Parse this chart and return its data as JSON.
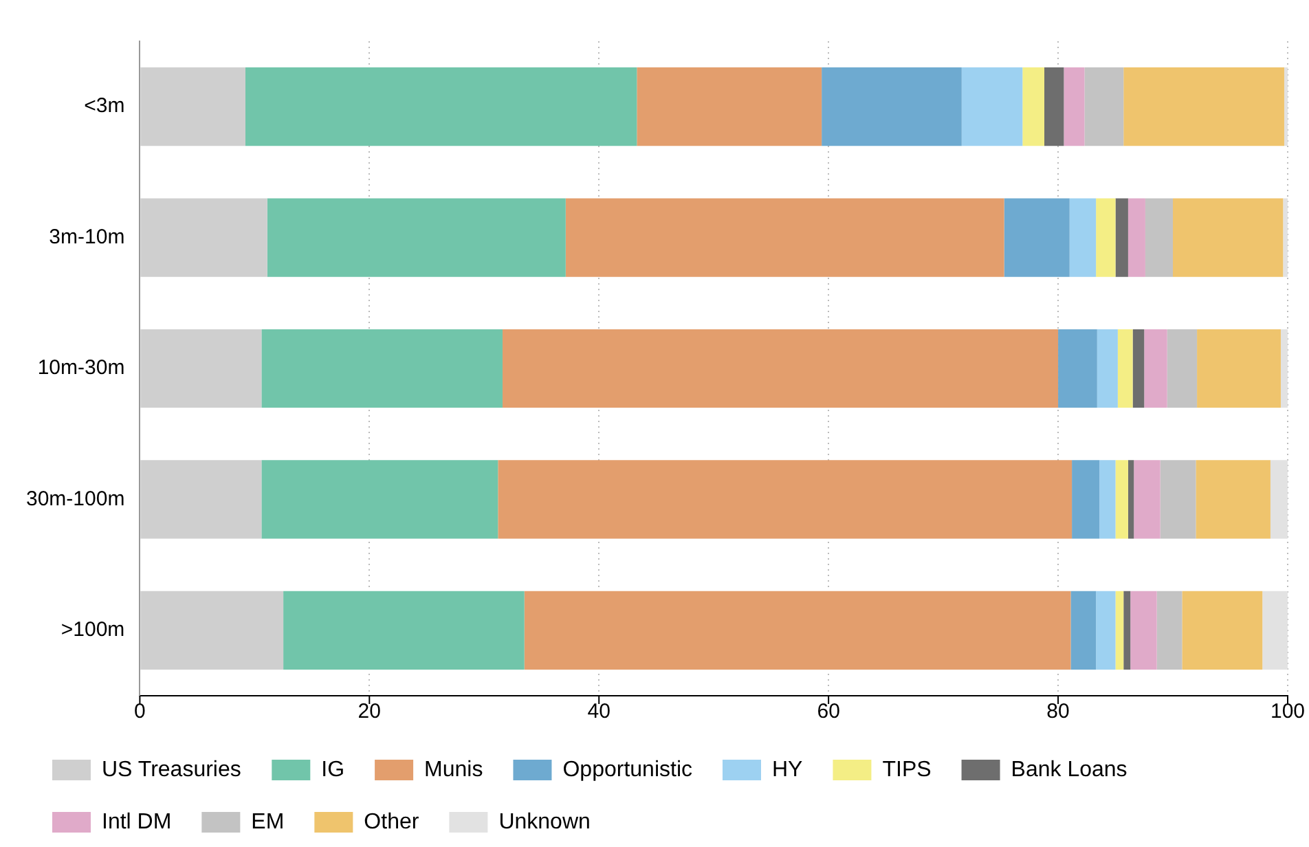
{
  "chart_data": {
    "type": "bar",
    "orientation": "horizontal",
    "stacked": true,
    "categories": [
      "<3m",
      "3m-10m",
      "10m-30m",
      "30m-100m",
      ">100m"
    ],
    "series": [
      {
        "name": "US Treasuries",
        "color": "#cfcfcf",
        "values": [
          9.2,
          11.1,
          10.6,
          10.6,
          12.5
        ]
      },
      {
        "name": "IG",
        "color": "#71c5aa",
        "values": [
          34.1,
          26.0,
          21.0,
          20.6,
          21.0
        ]
      },
      {
        "name": "Munis",
        "color": "#e39e6d",
        "values": [
          16.1,
          38.2,
          48.4,
          50.0,
          47.6
        ]
      },
      {
        "name": "Opportunistic",
        "color": "#6eaad0",
        "values": [
          12.2,
          5.7,
          3.4,
          2.4,
          2.2
        ]
      },
      {
        "name": "HY",
        "color": "#9dd1f1",
        "values": [
          5.3,
          2.3,
          1.8,
          1.4,
          1.7
        ]
      },
      {
        "name": "TIPS",
        "color": "#f4ee85",
        "values": [
          1.9,
          1.7,
          1.3,
          1.1,
          0.7
        ]
      },
      {
        "name": "Bank Loans",
        "color": "#6e6e6e",
        "values": [
          1.7,
          1.1,
          1.0,
          0.5,
          0.6
        ]
      },
      {
        "name": "Intl DM",
        "color": "#e0aac9",
        "values": [
          1.8,
          1.5,
          2.0,
          2.3,
          2.3
        ]
      },
      {
        "name": "EM",
        "color": "#c3c3c3",
        "values": [
          3.4,
          2.4,
          2.6,
          3.1,
          2.2
        ]
      },
      {
        "name": "Other",
        "color": "#efc46d",
        "values": [
          14.0,
          9.6,
          7.3,
          6.5,
          7.0
        ]
      },
      {
        "name": "Unknown",
        "color": "#e2e2e2",
        "values": [
          0.4,
          0.4,
          0.6,
          1.5,
          2.2
        ]
      }
    ],
    "xlim": [
      0,
      100
    ],
    "xticks": [
      0,
      20,
      40,
      60,
      80,
      100
    ],
    "grid": "x",
    "legend": "bottom"
  }
}
